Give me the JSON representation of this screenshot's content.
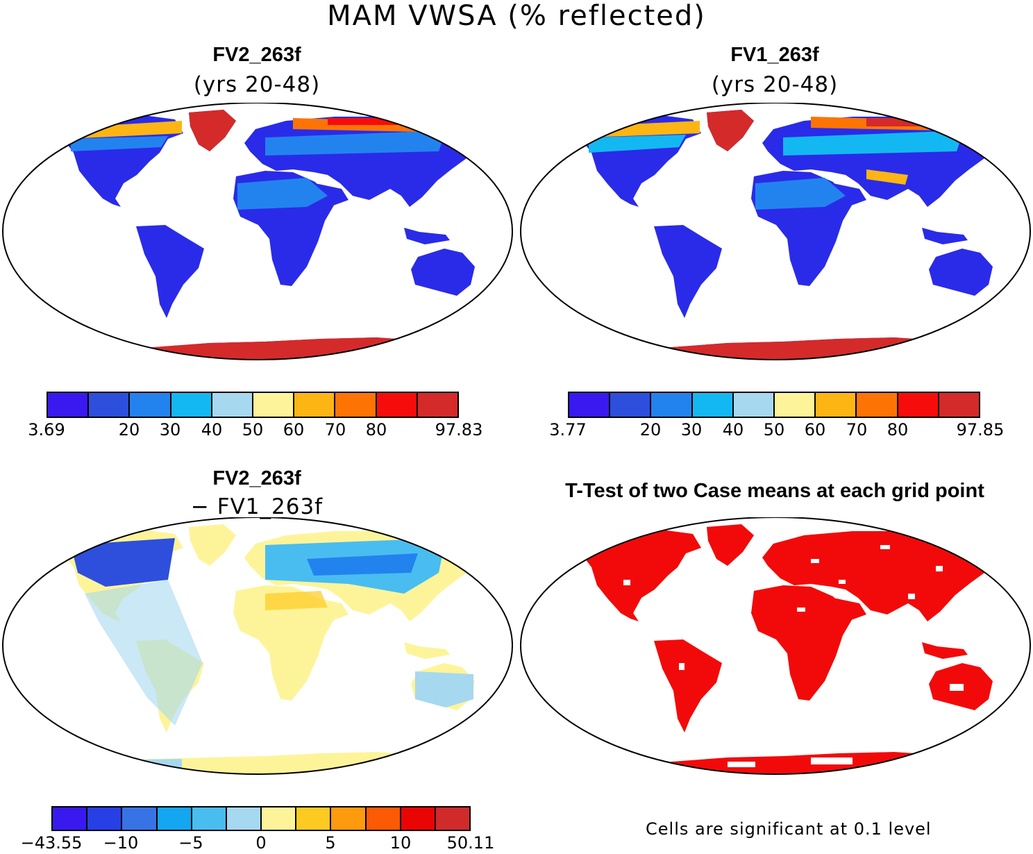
{
  "figure": {
    "title": "MAM VWSA (% reflected)"
  },
  "palettes": {
    "absolute": [
      "#3a18f0",
      "#2d4fdc",
      "#2283ef",
      "#13b8f2",
      "#a6d8f0",
      "#fdf49a",
      "#fdb514",
      "#fd7405",
      "#f70c0c",
      "#d42a2a"
    ],
    "difference": [
      "#3a18f0",
      "#2640e6",
      "#3873e6",
      "#14a6f0",
      "#49bdf0",
      "#a6d8f0",
      "#fdf49a",
      "#fdca22",
      "#fd9a0e",
      "#fd5a05",
      "#ea0505",
      "#d02a2a"
    ],
    "significance": "#f20a0a"
  },
  "panels": [
    {
      "id": "fv2",
      "title": "FV2_263f",
      "subtitle": "(yrs 20-48)",
      "colorbar_labels": [
        "3.69",
        "20",
        "30",
        "40",
        "50",
        "60",
        "70",
        "80",
        "97.83"
      ]
    },
    {
      "id": "fv1",
      "title": "FV1_263f",
      "subtitle": "(yrs 20-48)",
      "colorbar_labels": [
        "3.77",
        "20",
        "30",
        "40",
        "50",
        "60",
        "70",
        "80",
        "97.85"
      ]
    },
    {
      "id": "diff",
      "title": "FV2_263f",
      "subtitle": "− FV1_263f",
      "colorbar_labels": [
        "−43.55",
        "−10",
        "−5",
        "0",
        "5",
        "10",
        "50.11"
      ]
    },
    {
      "id": "ttest",
      "title": "T-Test of two Case means at each grid point",
      "footnote": "Cells are significant at 0.1 level"
    }
  ]
}
